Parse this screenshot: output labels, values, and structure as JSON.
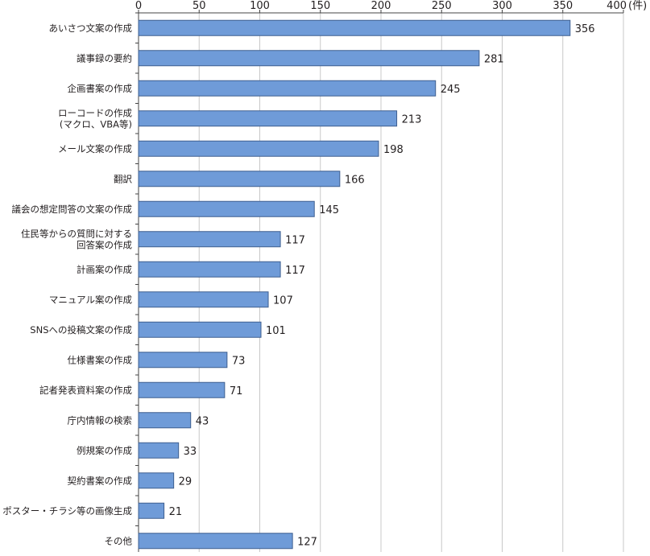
{
  "chart_data": {
    "type": "bar",
    "orientation": "horizontal",
    "unit_label": "(件)",
    "xlim": [
      0,
      400
    ],
    "xticks": [
      0,
      50,
      100,
      150,
      200,
      250,
      300,
      350,
      400
    ],
    "grid": true,
    "colors": {
      "bar_fill": "#6f9bd8",
      "bar_stroke": "#3e5f8f",
      "grid": "#c8c8c8",
      "axis": "#444444",
      "text": "#231f20"
    },
    "categories": [
      [
        "あいさつ文案の作成"
      ],
      [
        "議事録の要約"
      ],
      [
        "企画書案の作成"
      ],
      [
        "ローコードの作成",
        "(マクロ、VBA等)"
      ],
      [
        "メール文案の作成"
      ],
      [
        "翻訳"
      ],
      [
        "議会の想定問答の文案の作成"
      ],
      [
        "住民等からの質問に対する",
        "回答案の作成"
      ],
      [
        "計画案の作成"
      ],
      [
        "マニュアル案の作成"
      ],
      [
        "SNSへの投稿文案の作成"
      ],
      [
        "仕様書案の作成"
      ],
      [
        "記者発表資料案の作成"
      ],
      [
        "庁内情報の検索"
      ],
      [
        "例規案の作成"
      ],
      [
        "契約書案の作成"
      ],
      [
        "ポスター・チラシ等の画像生成"
      ],
      [
        "その他"
      ]
    ],
    "values": [
      356,
      281,
      245,
      213,
      198,
      166,
      145,
      117,
      117,
      107,
      101,
      73,
      71,
      43,
      33,
      29,
      21,
      127
    ]
  }
}
